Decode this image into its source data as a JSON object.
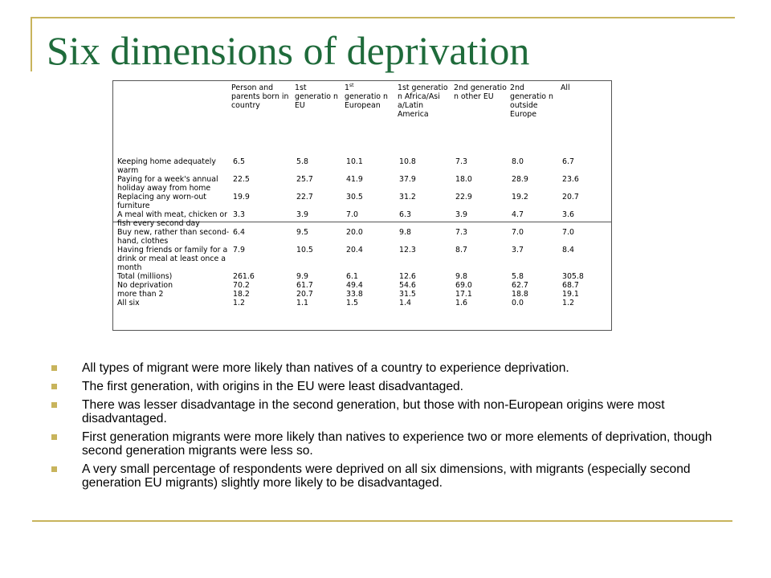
{
  "slide": {
    "title": "Six dimensions of deprivation"
  },
  "table": {
    "headers": [
      "",
      "Person and parents born in country",
      "1st generatio n EU",
      "1",
      "1st generatio n Africa/Asi a/Latin America",
      "2nd generatio n other EU",
      "2nd generatio n outside Europe",
      "All"
    ],
    "header3_sup": "st",
    "header3_rest": "generatio n European",
    "rows": [
      {
        "label": "Keeping home adequately warm",
        "values": [
          "6.5",
          "5.8",
          "10.1",
          "10.8",
          "7.3",
          "8.0",
          "6.7"
        ]
      },
      {
        "label": "Paying for a week's annual holiday away from home",
        "values": [
          "22.5",
          "25.7",
          "41.9",
          "37.9",
          "18.0",
          "28.9",
          "23.6"
        ]
      },
      {
        "label": "Replacing any worn-out furniture",
        "values": [
          "19.9",
          "22.7",
          "30.5",
          "31.2",
          "22.9",
          "19.2",
          "20.7"
        ]
      },
      {
        "label": "A meal with meat, chicken or fish every second day",
        "values": [
          "3.3",
          "3.9",
          "7.0",
          "6.3",
          "3.9",
          "4.7",
          "3.6"
        ]
      },
      {
        "label": "Buy new, rather than second-hand, clothes",
        "values": [
          "6.4",
          "9.5",
          "20.0",
          "9.8",
          "7.3",
          "7.0",
          "7.0"
        ]
      },
      {
        "label": "Having friends or family for a drink or meal at least once a month",
        "values": [
          "7.9",
          "10.5",
          "20.4",
          "12.3",
          "8.7",
          "3.7",
          "8.4"
        ]
      },
      {
        "label": "Total (millions)",
        "values": [
          "261.6",
          "9.9",
          "6.1",
          "12.6",
          "9.8",
          "5.8",
          "305.8"
        ]
      },
      {
        "label": "No deprivation",
        "values": [
          "70.2",
          "61.7",
          "49.4",
          "54.6",
          "69.0",
          "62.7",
          "68.7"
        ]
      },
      {
        "label": "more than 2",
        "values": [
          "18.2",
          "20.7",
          "33.8",
          "31.5",
          "17.1",
          "18.8",
          "19.1"
        ]
      },
      {
        "label": "All six",
        "values": [
          "1.2",
          "1.1",
          "1.5",
          "1.4",
          "1.6",
          "0.0",
          "1.2"
        ]
      }
    ]
  },
  "bullets": [
    "All types of migrant were more likely than natives of a country to experience deprivation.",
    "The first generation, with origins in the EU were least disadvantaged.",
    "There was lesser disadvantage in the second generation, but those with non-European origins were most disadvantaged.",
    "First generation migrants were more likely than natives to experience two or more elements of deprivation, though second generation migrants were less so.",
    "A very small percentage of respondents were deprived on all six dimensions, with migrants (especially second generation EU migrants) slightly more likely to be disadvantaged."
  ],
  "colors": {
    "title": "#1f6b3b",
    "accent_rule": "#c8b45c"
  }
}
